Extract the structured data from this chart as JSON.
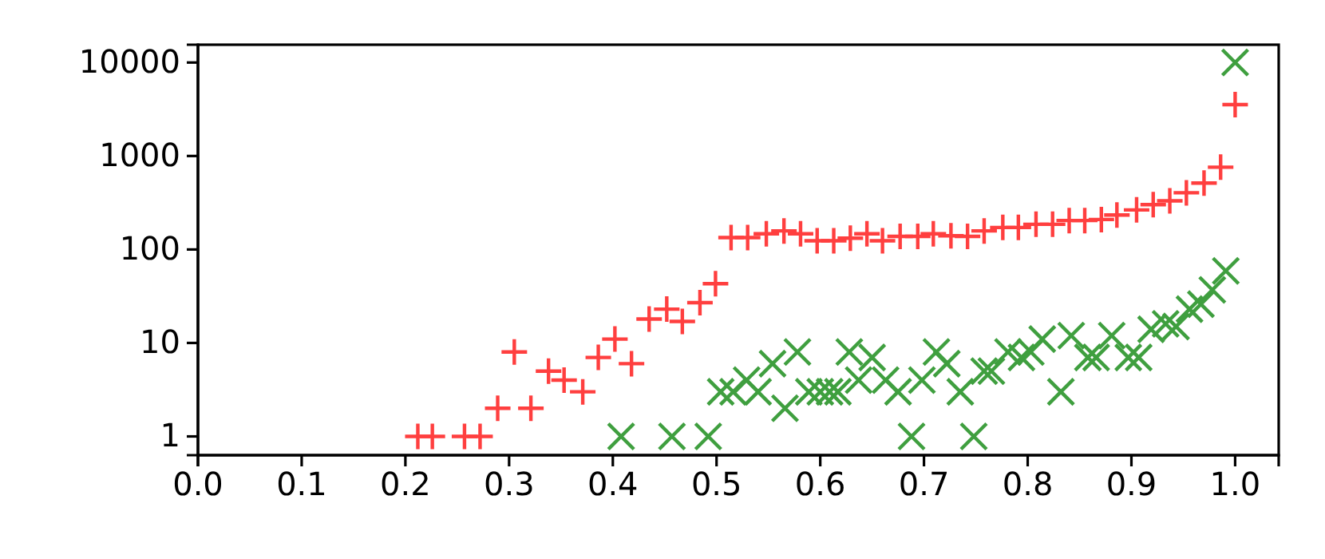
{
  "chart_data": {
    "type": "scatter",
    "log": "y",
    "grid": false,
    "xlim": [
      0,
      1.042
    ],
    "xticks": [
      {
        "value": 0,
        "label": "0.0"
      },
      {
        "value": 0.1,
        "label": "0.1"
      },
      {
        "value": 0.2,
        "label": "0.2"
      },
      {
        "value": 0.3,
        "label": "0.3"
      },
      {
        "value": 0.4,
        "label": "0.4"
      },
      {
        "value": 0.5,
        "label": "0.5"
      },
      {
        "value": 0.6,
        "label": "0.6"
      },
      {
        "value": 0.7,
        "label": "0.7"
      },
      {
        "value": 0.8,
        "label": "0.8"
      },
      {
        "value": 0.9,
        "label": "0.9"
      },
      {
        "value": 1,
        "label": "1.0"
      }
    ],
    "ylim": [
      0.63,
      15500
    ],
    "yticks": [
      1,
      10,
      100,
      1000,
      10000
    ],
    "series": [
      {
        "color": "#ff3f3f",
        "marker": "plus",
        "x": [
          0.212,
          0.226,
          0.257,
          0.272,
          0.289,
          0.305,
          0.321,
          0.338,
          0.353,
          0.371,
          0.386,
          0.402,
          0.418,
          0.435,
          0.452,
          0.467,
          0.484,
          0.499,
          0.514,
          0.53,
          0.548,
          0.565,
          0.581,
          0.597,
          0.613,
          0.629,
          0.645,
          0.66,
          0.677,
          0.694,
          0.709,
          0.726,
          0.742,
          0.758,
          0.776,
          0.791,
          0.808,
          0.824,
          0.84,
          0.855,
          0.871,
          0.886,
          0.905,
          0.921,
          0.937,
          0.953,
          0.97,
          0.986,
          1.0
        ],
        "values": [
          1,
          1,
          1,
          1,
          2,
          8,
          2,
          5,
          4,
          3,
          7,
          11,
          6,
          18,
          23,
          17,
          27,
          43,
          134,
          134,
          147,
          158,
          147,
          124,
          124,
          132,
          147,
          124,
          138,
          138,
          147,
          140,
          138,
          158,
          172,
          172,
          186,
          186,
          204,
          204,
          209,
          234,
          265,
          302,
          331,
          404,
          513,
          759,
          3550
        ]
      },
      {
        "color": "#3f9f3f",
        "marker": "cross",
        "x": [
          0.408,
          0.457,
          0.492,
          0.504,
          0.516,
          0.529,
          0.54,
          0.554,
          0.566,
          0.578,
          0.589,
          0.6,
          0.609,
          0.617,
          0.628,
          0.637,
          0.65,
          0.663,
          0.675,
          0.688,
          0.698,
          0.712,
          0.722,
          0.735,
          0.748,
          0.758,
          0.765,
          0.781,
          0.794,
          0.803,
          0.814,
          0.832,
          0.842,
          0.858,
          0.866,
          0.881,
          0.897,
          0.907,
          0.919,
          0.933,
          0.943,
          0.956,
          0.967,
          0.978,
          0.991,
          1.0
        ],
        "values": [
          1,
          1,
          1,
          3,
          3,
          4,
          3,
          6,
          2,
          8,
          3,
          3,
          3,
          3,
          8,
          4,
          7,
          4,
          3,
          1,
          4,
          8,
          6,
          3,
          1,
          5,
          5,
          8,
          7,
          8,
          11,
          3,
          12,
          7,
          7,
          12,
          7,
          7,
          14,
          16,
          15,
          23,
          26,
          37,
          59,
          10000
        ]
      }
    ]
  }
}
